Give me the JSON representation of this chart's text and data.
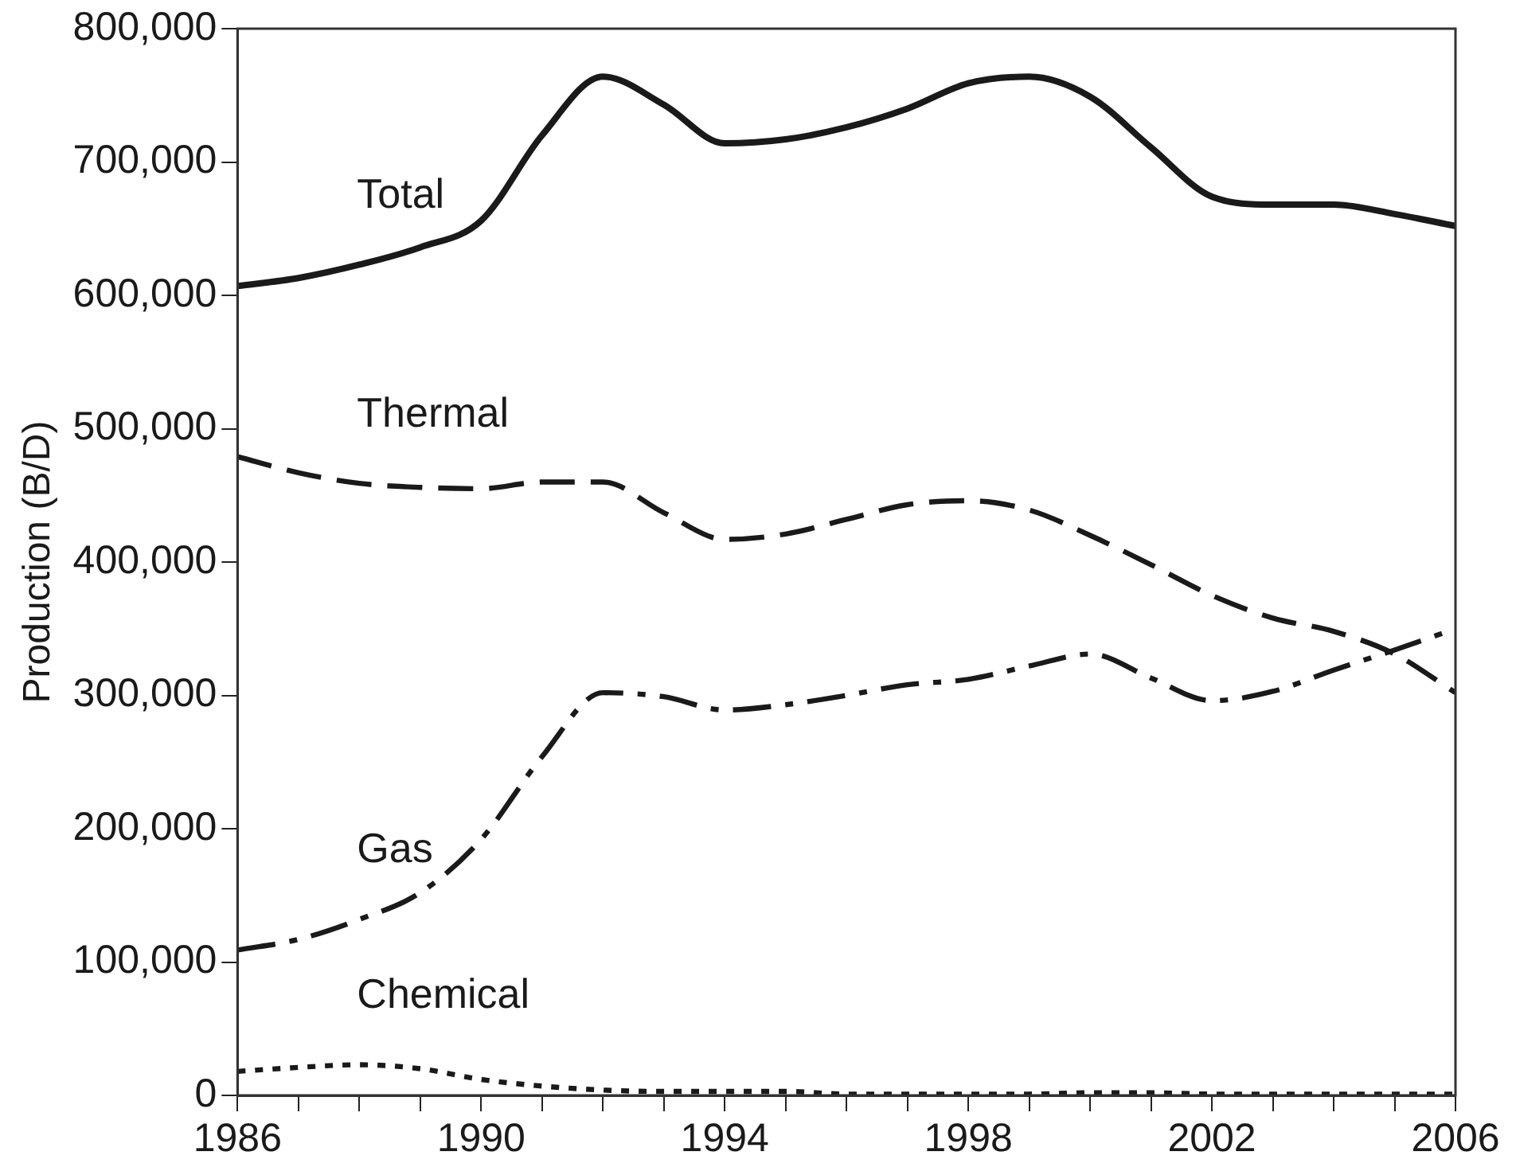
{
  "chart_data": {
    "type": "line",
    "ylabel": "Production (B/D)",
    "x": [
      1986,
      1987,
      1988,
      1989,
      1990,
      1991,
      1992,
      1993,
      1994,
      1995,
      1996,
      1997,
      1998,
      1999,
      2000,
      2001,
      2002,
      2003,
      2004,
      2005,
      2006
    ],
    "series": [
      {
        "name": "Total",
        "color": "#1a1a1a",
        "line_style": "solid",
        "values": [
          607000,
          613000,
          623000,
          636000,
          656000,
          720000,
          764000,
          743000,
          714000,
          717000,
          726000,
          740000,
          759000,
          764000,
          749000,
          711000,
          674000,
          668000,
          668000,
          661000,
          652000
        ]
      },
      {
        "name": "Thermal",
        "color": "#1a1a1a",
        "line_style": "dashed",
        "values": [
          479000,
          467000,
          459000,
          456000,
          455000,
          460000,
          460000,
          437000,
          417000,
          421000,
          432000,
          443000,
          446000,
          439000,
          420000,
          398000,
          375000,
          358000,
          348000,
          331000,
          302000
        ]
      },
      {
        "name": "Gas",
        "color": "#1a1a1a",
        "line_style": "dashdot",
        "values": [
          109000,
          117000,
          132000,
          152000,
          192000,
          254000,
          302000,
          299000,
          289000,
          293000,
          300000,
          308000,
          312000,
          322000,
          331000,
          313000,
          296000,
          303000,
          319000,
          334000,
          350000
        ]
      },
      {
        "name": "Chemical",
        "color": "#1a1a1a",
        "line_style": "dotted",
        "values": [
          18000,
          21000,
          23000,
          20000,
          12000,
          7000,
          4000,
          3000,
          3000,
          3000,
          1000,
          1000,
          1000,
          1000,
          2000,
          2000,
          1000,
          1000,
          1000,
          1000,
          1000
        ]
      }
    ],
    "xlim": [
      1986,
      2006
    ],
    "xticks": [
      1986,
      {
        "value": 1987,
        "label": null
      },
      {
        "value": 1988,
        "label": null
      },
      {
        "value": 1989,
        "label": null
      },
      1990,
      {
        "value": 1991,
        "label": null
      },
      {
        "value": 1992,
        "label": null
      },
      {
        "value": 1993,
        "label": null
      },
      1994,
      {
        "value": 1995,
        "label": null
      },
      {
        "value": 1996,
        "label": null
      },
      {
        "value": 1997,
        "label": null
      },
      1998,
      {
        "value": 1999,
        "label": null
      },
      {
        "value": 2000,
        "label": null
      },
      {
        "value": 2001,
        "label": null
      },
      2002,
      {
        "value": 2003,
        "label": null
      },
      {
        "value": 2004,
        "label": null
      },
      {
        "value": 2005,
        "label": null
      },
      2006
    ],
    "ylim": [
      0,
      800000
    ],
    "yticks": [
      0,
      {
        "value": 100000,
        "label": "100,000"
      },
      {
        "value": 200000,
        "label": "200,000"
      },
      {
        "value": 300000,
        "label": "300,000"
      },
      {
        "value": 400000,
        "label": "400,000"
      },
      {
        "value": 500000,
        "label": "500,000"
      },
      {
        "value": 600000,
        "label": "600,000"
      },
      {
        "value": 700000,
        "label": "700,000"
      },
      {
        "value": 800000,
        "label": "800,000"
      }
    ],
    "grid": false,
    "legend": false,
    "marker": "none"
  }
}
